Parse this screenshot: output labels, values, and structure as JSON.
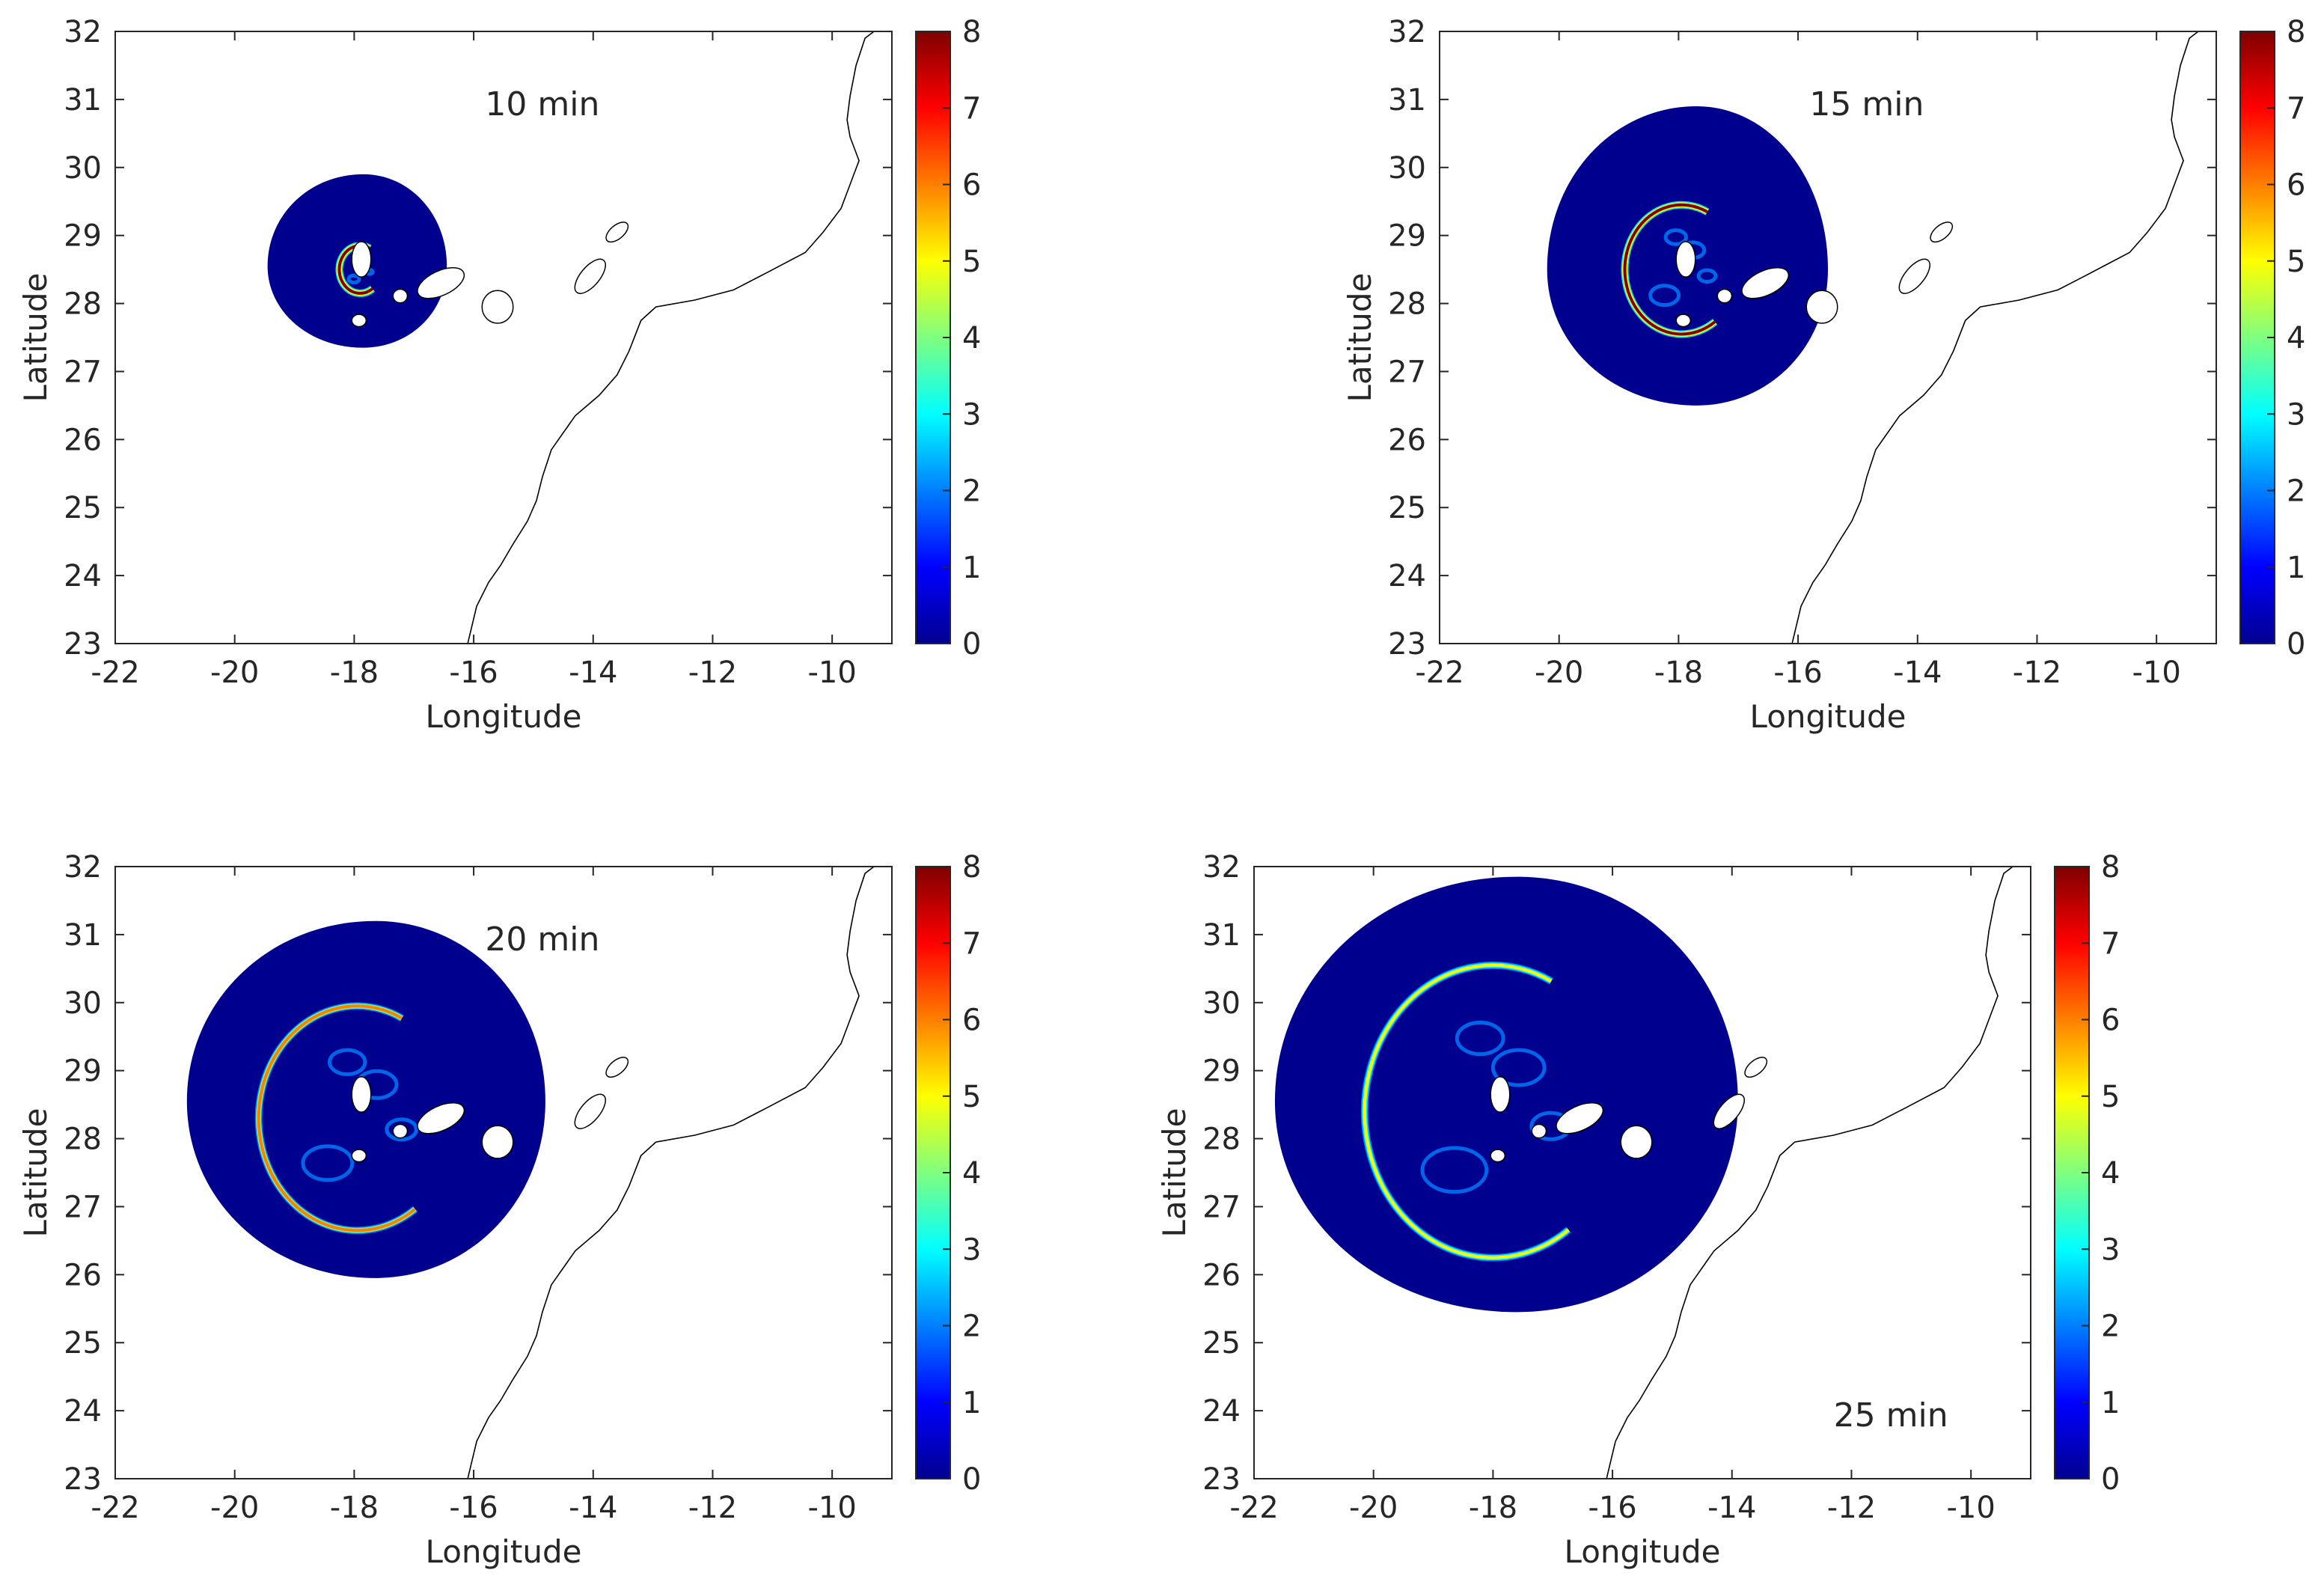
{
  "colorscale": {
    "name": "jet",
    "stops": [
      "#00008f",
      "#0000ff",
      "#007fff",
      "#00ffff",
      "#7fff7f",
      "#ffff00",
      "#ff7f00",
      "#ff0000",
      "#7f0000"
    ]
  },
  "coastline_color": "#000000",
  "chart_data": [
    {
      "type": "heatmap",
      "title": "10 min",
      "title_position": "top",
      "xlabel": "Longitude",
      "ylabel": "Latitude",
      "xlim": [
        -22,
        -9
      ],
      "ylim": [
        23,
        32
      ],
      "xticks": [
        -22,
        -20,
        -18,
        -16,
        -14,
        -12,
        -10
      ],
      "yticks": [
        23,
        24,
        25,
        26,
        27,
        28,
        29,
        30,
        31,
        32
      ],
      "colorbar": {
        "range": [
          0,
          8
        ],
        "ticks": [
          0,
          1,
          2,
          3,
          4,
          5,
          6,
          7,
          8
        ]
      },
      "wave_front": {
        "center": [
          -17.85,
          28.55
        ],
        "radius_east": 1.4,
        "radius_west": 1.6,
        "radius_north": 1.35,
        "radius_south": 1.2
      },
      "leading_crest": {
        "center": [
          -17.9,
          28.5
        ],
        "radius": 0.35,
        "max_value": 8
      }
    },
    {
      "type": "heatmap",
      "title": "15 min",
      "title_position": "top",
      "xlabel": "Longitude",
      "ylabel": "Latitude",
      "xlim": [
        -22,
        -9
      ],
      "ylim": [
        23,
        32
      ],
      "xticks": [
        -22,
        -20,
        -18,
        -16,
        -14,
        -12,
        -10
      ],
      "yticks": [
        23,
        24,
        25,
        26,
        27,
        28,
        29,
        30,
        31,
        32
      ],
      "colorbar": {
        "range": [
          0,
          8
        ],
        "ticks": [
          0,
          1,
          2,
          3,
          4,
          5,
          6,
          7,
          8
        ]
      },
      "wave_front": {
        "center": [
          -17.7,
          28.5
        ],
        "radius_east": 2.2,
        "radius_west": 2.5,
        "radius_north": 2.4,
        "radius_south": 2.0
      },
      "leading_crest": {
        "center": [
          -17.95,
          28.5
        ],
        "radius": 0.95,
        "max_value": 7.5
      }
    },
    {
      "type": "heatmap",
      "title": "20 min",
      "title_position": "top",
      "xlabel": "Longitude",
      "ylabel": "Latitude",
      "xlim": [
        -22,
        -9
      ],
      "ylim": [
        23,
        32
      ],
      "xticks": [
        -22,
        -20,
        -18,
        -16,
        -14,
        -12,
        -10
      ],
      "yticks": [
        23,
        24,
        25,
        26,
        27,
        28,
        29,
        30,
        31,
        32
      ],
      "colorbar": {
        "range": [
          0,
          8
        ],
        "ticks": [
          0,
          1,
          2,
          3,
          4,
          5,
          6,
          7,
          8
        ]
      },
      "wave_front": {
        "center": [
          -17.65,
          28.55
        ],
        "radius_east": 2.85,
        "radius_west": 3.15,
        "radius_north": 2.65,
        "radius_south": 2.6
      },
      "leading_crest": {
        "center": [
          -17.95,
          28.3
        ],
        "radius": 1.65,
        "max_value": 6
      }
    },
    {
      "type": "heatmap",
      "title": "25 min",
      "title_position": "bottom-right",
      "xlabel": "Longitude",
      "ylabel": "Latitude",
      "xlim": [
        -22,
        -9
      ],
      "ylim": [
        23,
        32
      ],
      "xticks": [
        -22,
        -20,
        -18,
        -16,
        -14,
        -12,
        -10
      ],
      "yticks": [
        23,
        24,
        25,
        26,
        27,
        28,
        29,
        30,
        31,
        32
      ],
      "colorbar": {
        "range": [
          0,
          8
        ],
        "ticks": [
          0,
          1,
          2,
          3,
          4,
          5,
          6,
          7,
          8
        ]
      },
      "wave_front": {
        "center": [
          -17.6,
          28.55
        ],
        "radius_east": 3.7,
        "radius_west": 4.05,
        "radius_north": 3.3,
        "radius_south": 3.1
      },
      "leading_crest": {
        "center": [
          -18.0,
          28.4
        ],
        "radius": 2.15,
        "max_value": 4.8
      }
    }
  ]
}
